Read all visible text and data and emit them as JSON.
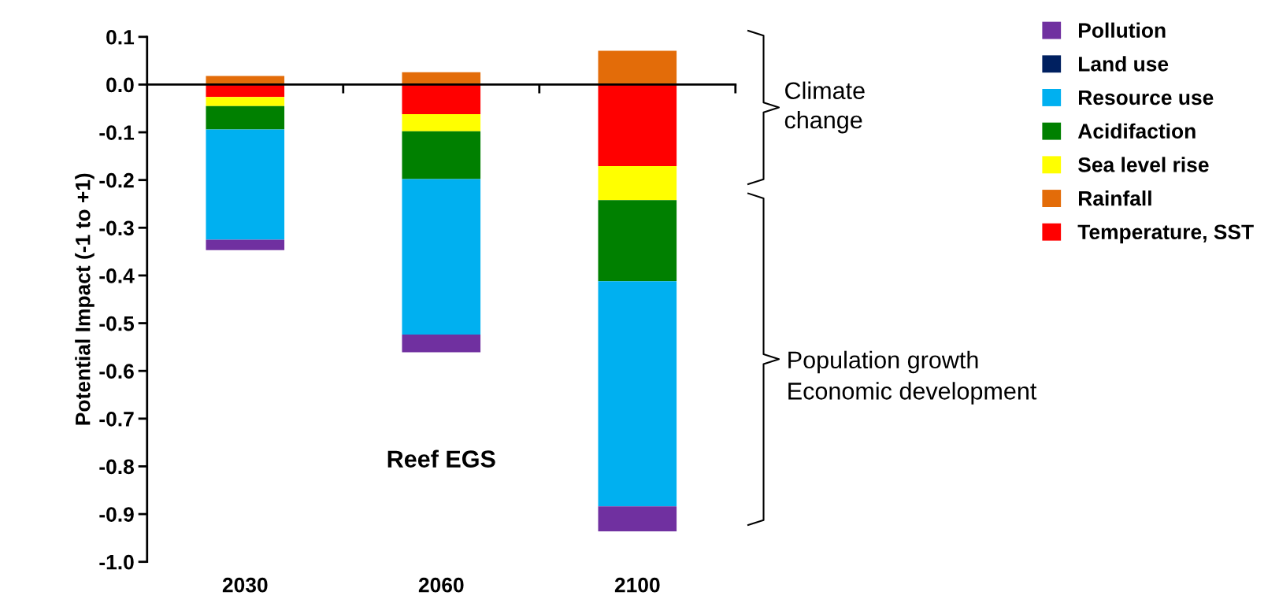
{
  "chart_data": {
    "type": "bar",
    "stacked": true,
    "ylabel": "Potential Impact (-1 to +1)",
    "categories": [
      "2030",
      "2060",
      "2100"
    ],
    "series": [
      {
        "name": "Temperature, SST",
        "color": "#ff0000",
        "values": [
          -0.026,
          -0.062,
          -0.171
        ]
      },
      {
        "name": "Rainfall",
        "color": "#e36c09",
        "values": [
          0.018,
          0.026,
          0.071
        ]
      },
      {
        "name": "Sea level rise",
        "color": "#ffff00",
        "values": [
          -0.019,
          -0.036,
          -0.071
        ]
      },
      {
        "name": "Acidifaction",
        "color": "#008000",
        "values": [
          -0.049,
          -0.1,
          -0.17
        ]
      },
      {
        "name": "Resource use",
        "color": "#00b0f0",
        "values": [
          -0.231,
          -0.326,
          -0.472
        ]
      },
      {
        "name": "Land use",
        "color": "#002060",
        "values": [
          0,
          0,
          0
        ]
      },
      {
        "name": "Pollution",
        "color": "#7030a0",
        "values": [
          -0.022,
          -0.037,
          -0.052
        ]
      }
    ],
    "ylim": [
      -1.0,
      0.1
    ],
    "yticks": [
      0.1,
      {
        "value": 0,
        "label": "0.0"
      },
      -0.1,
      -0.2,
      -0.3,
      -0.4,
      -0.5,
      -0.6,
      -0.7,
      -0.8,
      -0.9,
      {
        "value": -1.0,
        "label": "-1.0"
      }
    ],
    "annotations": [
      "Reef EGS",
      "Climate change",
      "Population growth\nEconomic development"
    ],
    "legend": "top right"
  }
}
